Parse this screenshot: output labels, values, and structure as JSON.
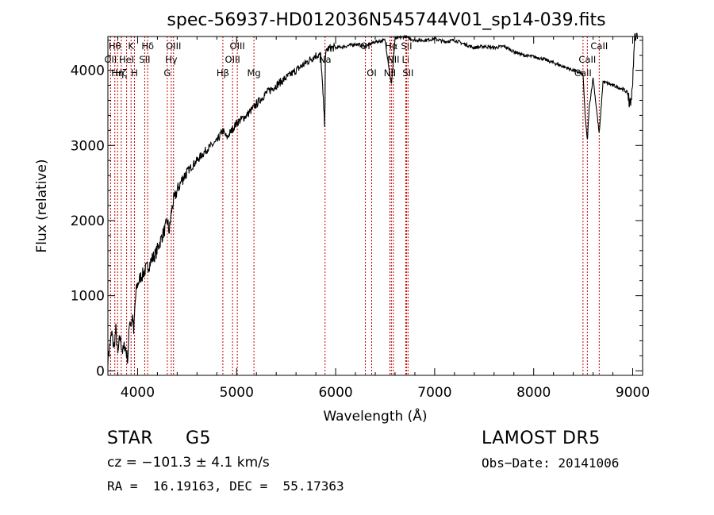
{
  "chart_data": {
    "type": "line",
    "title": "spec-56937-HD012036N545744V01_sp14-039.fits",
    "xlabel": "Wavelength (Å)",
    "ylabel": "Flux (relative)",
    "xlim": [
      3700,
      9100
    ],
    "ylim": [
      -60,
      4450
    ],
    "xticks": [
      4000,
      5000,
      6000,
      7000,
      8000,
      9000
    ],
    "yticks": [
      0,
      1000,
      2000,
      3000,
      4000
    ],
    "grid": false,
    "series": [
      {
        "x": [
          3700,
          3720,
          3740,
          3760,
          3780,
          3800,
          3820,
          3850,
          3870,
          3900,
          3920,
          3935,
          3950,
          3960,
          3975,
          3990,
          4000,
          4030,
          4050,
          4080,
          4100,
          4120,
          4150,
          4180,
          4200,
          4250,
          4280,
          4300,
          4320,
          4340,
          4360,
          4400,
          4450,
          4500,
          4600,
          4700,
          4800,
          4861,
          4900,
          5000,
          5100,
          5170,
          5200,
          5300,
          5400,
          5500,
          5600,
          5700,
          5800,
          5850,
          5890,
          5896,
          5910,
          5950,
          6000,
          6100,
          6200,
          6300,
          6400,
          6500,
          6563,
          6600,
          6700,
          6800,
          6900,
          7000,
          7100,
          7200,
          7300,
          7400,
          7500,
          7600,
          7700,
          7800,
          7900,
          8000,
          8100,
          8200,
          8300,
          8400,
          8498,
          8520,
          8542,
          8560,
          8600,
          8662,
          8700,
          8800,
          8900,
          8950,
          8980,
          9000,
          9020,
          9050
        ],
        "values": [
          150,
          350,
          500,
          300,
          550,
          200,
          450,
          250,
          350,
          150,
          700,
          600,
          750,
          500,
          900,
          1100,
          1150,
          1250,
          1280,
          1350,
          1380,
          1420,
          1500,
          1550,
          1620,
          1800,
          1900,
          2000,
          1850,
          2100,
          2250,
          2400,
          2550,
          2650,
          2800,
          2950,
          3050,
          3200,
          3100,
          3300,
          3400,
          3500,
          3550,
          3700,
          3800,
          3900,
          4000,
          4100,
          4200,
          4200,
          3250,
          4150,
          4280,
          4300,
          4300,
          4320,
          4350,
          4320,
          4380,
          4400,
          3800,
          4420,
          4450,
          4400,
          4400,
          4420,
          4380,
          4400,
          4350,
          4300,
          4320,
          4300,
          4320,
          4250,
          4200,
          4180,
          4150,
          4100,
          4050,
          4000,
          3950,
          3400,
          3050,
          3500,
          3900,
          3150,
          3850,
          3800,
          3750,
          3700,
          3500,
          3900,
          4450,
          4500
        ]
      }
    ],
    "lines": [
      {
        "x": 3727,
        "label": "OII",
        "row": 1
      },
      {
        "x": 3770,
        "label": "Hθ",
        "row": 0
      },
      {
        "x": 3798,
        "label": "Hη",
        "row": 2
      },
      {
        "x": 3835,
        "label": "Hζ",
        "row": 2
      },
      {
        "x": 3889,
        "label": "HeI",
        "row": 1
      },
      {
        "x": 3934,
        "label": "K",
        "row": 0
      },
      {
        "x": 3968,
        "label": "H",
        "row": 2
      },
      {
        "x": 4072,
        "label": "SII",
        "row": 1
      },
      {
        "x": 4102,
        "label": "Hδ",
        "row": 0
      },
      {
        "x": 4300,
        "label": "G",
        "row": 2
      },
      {
        "x": 4340,
        "label": "Hγ",
        "row": 1
      },
      {
        "x": 4363,
        "label": "OIII",
        "row": 0
      },
      {
        "x": 4861,
        "label": "Hβ",
        "row": 2
      },
      {
        "x": 4959,
        "label": "OIII",
        "row": 1
      },
      {
        "x": 5007,
        "label": "OIII",
        "row": 0
      },
      {
        "x": 5175,
        "label": "Mg",
        "row": 2
      },
      {
        "x": 5893,
        "label": "Na",
        "row": 1
      },
      {
        "x": 6300,
        "label": "OI",
        "row": 0
      },
      {
        "x": 6364,
        "label": "OI",
        "row": 2
      },
      {
        "x": 6548,
        "label": "NII",
        "row": 2
      },
      {
        "x": 6563,
        "label": "Hα",
        "row": 0
      },
      {
        "x": 6583,
        "label": "NII",
        "row": 1
      },
      {
        "x": 6707,
        "label": "Li",
        "row": 1
      },
      {
        "x": 6716,
        "label": "SII",
        "row": 0
      },
      {
        "x": 6731,
        "label": "SII",
        "row": 2
      },
      {
        "x": 8498,
        "label": "CaII",
        "row": 2
      },
      {
        "x": 8542,
        "label": "CaII",
        "row": 1
      },
      {
        "x": 8662,
        "label": "CaII",
        "row": 0
      }
    ]
  },
  "info": {
    "class": "STAR",
    "subclass": "G5",
    "survey": "LAMOST DR5",
    "cz": "cz = −101.3 ± 4.1 km/s",
    "obsdate": "Obs−Date: 20141006",
    "radec": "RA =  16.19163, DEC =  55.17363"
  }
}
